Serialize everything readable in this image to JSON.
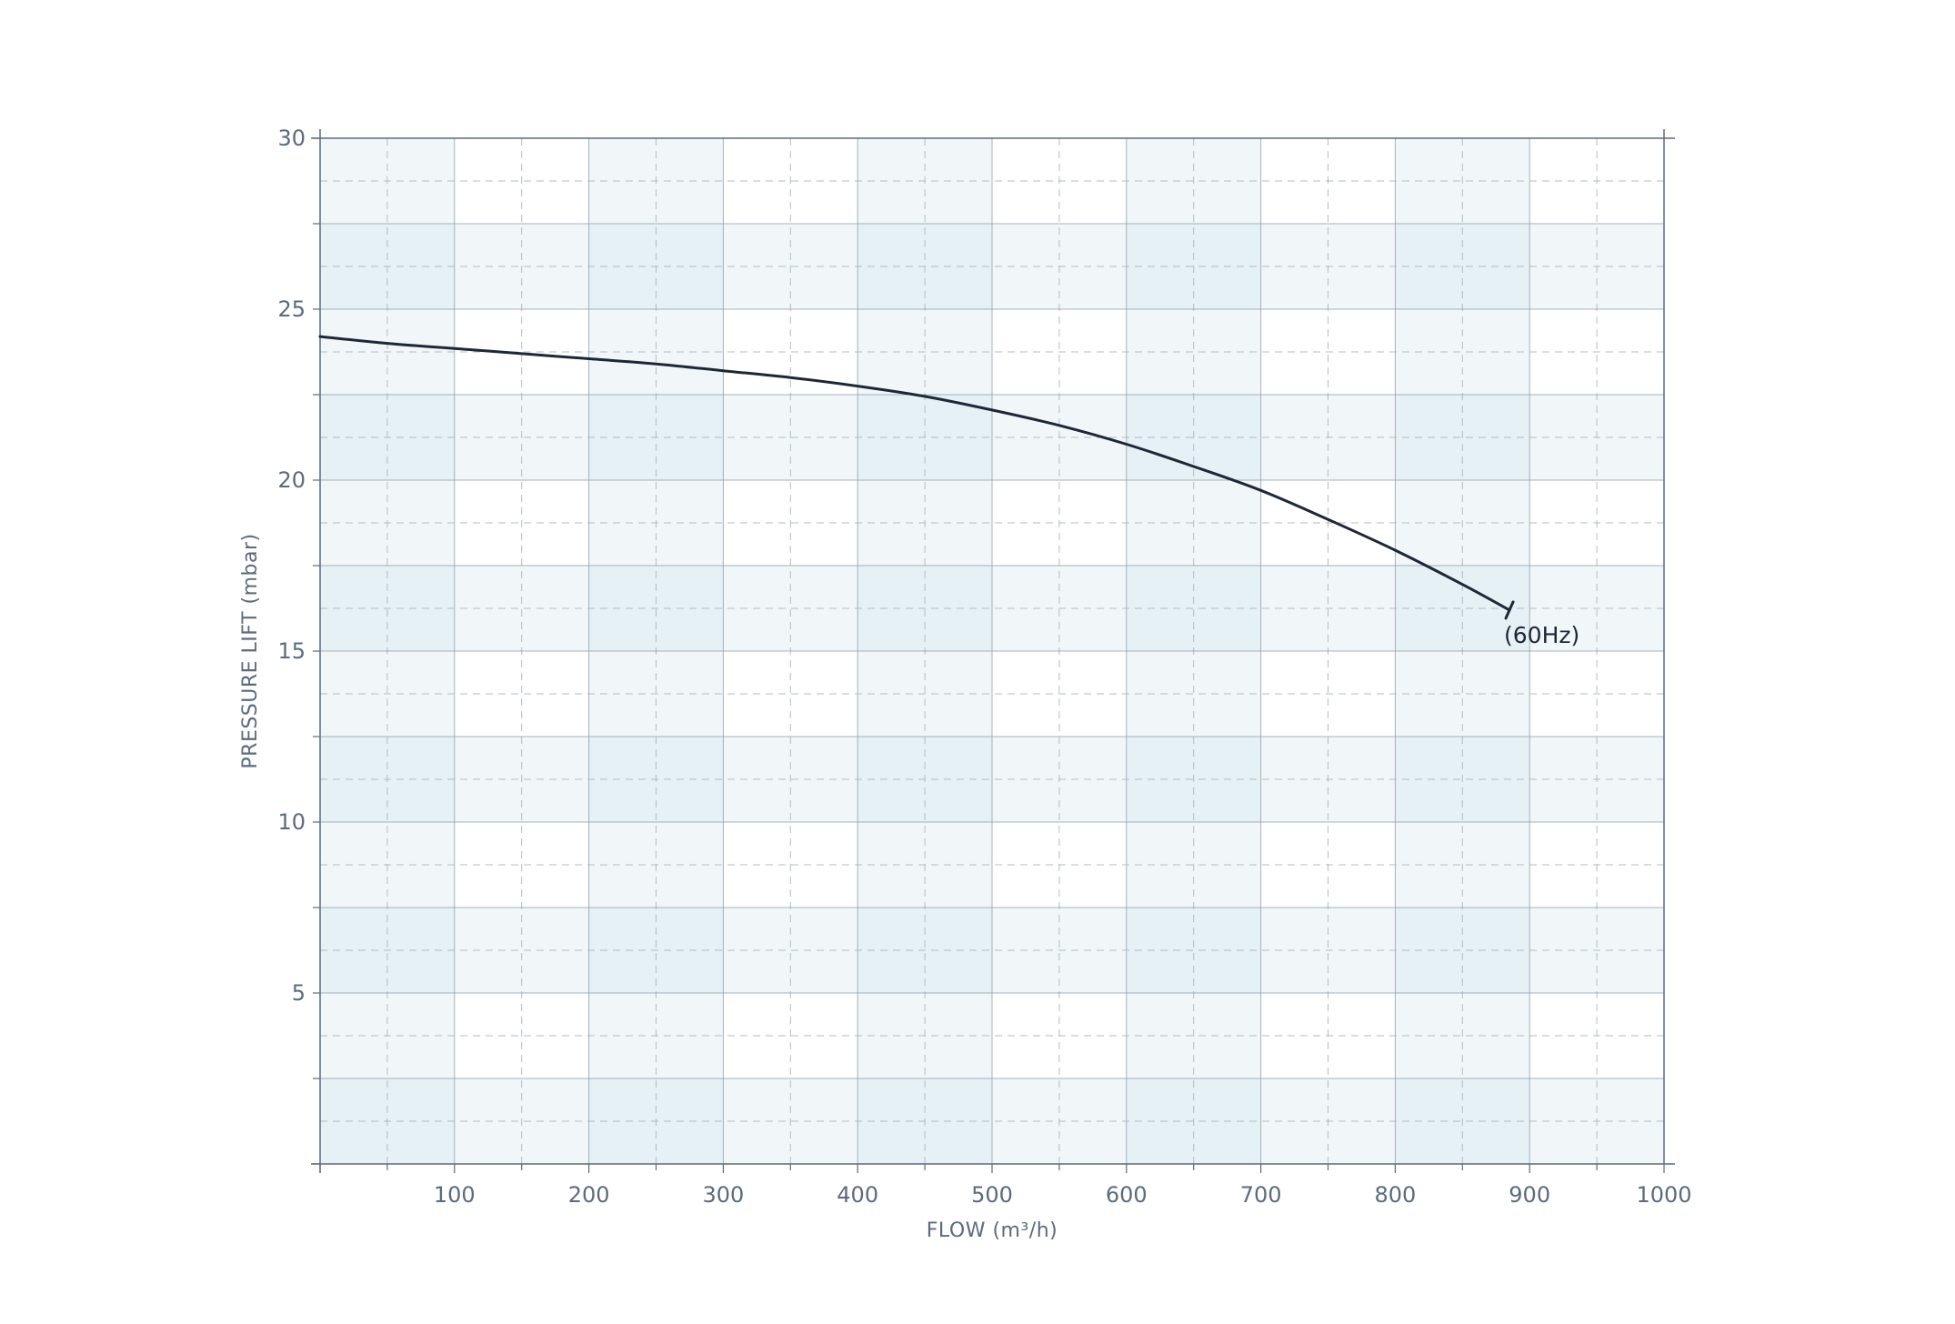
{
  "colors": {
    "background": "#ffffff",
    "band_medium": "#f1f7f9",
    "band_dark": "#e6f1f5",
    "grid_major": "#8a9aa6",
    "grid_minor": "#a9b7c1",
    "axis": "#5b6b7e",
    "text": "#5b6b7e",
    "curve": "#1d2738"
  },
  "chart_data": {
    "type": "line",
    "title": "",
    "xlabel": "FLOW (m³/h)",
    "ylabel": "PRESSURE LIFT (mbar)",
    "xlim": [
      0,
      1000
    ],
    "ylim": [
      0,
      30
    ],
    "x_ticks": [
      100,
      200,
      300,
      400,
      500,
      600,
      700,
      800,
      900,
      1000
    ],
    "x_tick_labels": [
      "100",
      "200",
      "300",
      "400",
      "500",
      "600",
      "700",
      "800",
      "900",
      "1000"
    ],
    "y_ticks": [
      5,
      10,
      15,
      20,
      25,
      30
    ],
    "y_tick_labels": [
      "5",
      "10",
      "15",
      "20",
      "25",
      "30"
    ],
    "grid": true,
    "series": [
      {
        "name": "(60Hz)",
        "x": [
          0,
          50,
          100,
          150,
          200,
          250,
          300,
          350,
          400,
          450,
          500,
          550,
          600,
          650,
          700,
          750,
          800,
          850,
          885
        ],
        "y": [
          24.2,
          24.0,
          23.85,
          23.7,
          23.55,
          23.4,
          23.2,
          23.0,
          22.75,
          22.45,
          22.05,
          21.6,
          21.05,
          20.4,
          19.7,
          18.85,
          17.95,
          16.95,
          16.2
        ]
      }
    ]
  }
}
